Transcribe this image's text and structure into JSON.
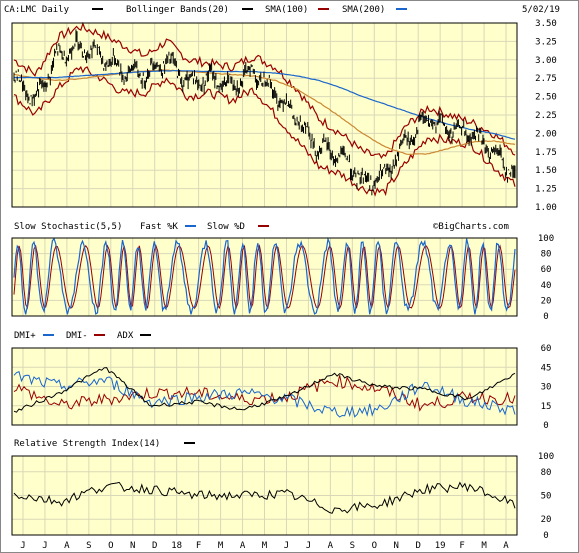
{
  "header": {
    "symbol": "CA:LMC Daily",
    "date": "5/02/19",
    "legend": [
      {
        "label": "Bollinger Bands(20)",
        "color": "#000000"
      },
      {
        "label": "SMA(100)",
        "color": "#990000"
      },
      {
        "label": "SMA(200)",
        "color": "#1a66cc"
      }
    ]
  },
  "watermark": "©BigCharts.com",
  "colors": {
    "background": "#ffffcc",
    "grid": "#d8d8b8",
    "price": "#000000",
    "bollinger": "#990000",
    "sma100": "#cc8833",
    "sma200": "#1a66cc",
    "fast_k": "#1a66cc",
    "slow_d": "#990000",
    "dmi_plus": "#1a66cc",
    "dmi_minus": "#990000",
    "adx": "#000000",
    "rsi": "#000000"
  },
  "x_labels": [
    "J",
    "J",
    "A",
    "S",
    "O",
    "N",
    "D",
    "18",
    "F",
    "M",
    "A",
    "M",
    "J",
    "J",
    "A",
    "S",
    "O",
    "N",
    "D",
    "19",
    "F",
    "M",
    "A"
  ],
  "chart_data": [
    {
      "type": "line",
      "title": "CA:LMC Daily",
      "panel": "price",
      "ylim": [
        1.0,
        3.5
      ],
      "y_ticks": [
        "3.50",
        "3.25",
        "3.00",
        "2.75",
        "2.50",
        "2.25",
        "2.00",
        "1.75",
        "1.50",
        "1.25",
        "1.00"
      ],
      "x": [
        "Jun 17",
        "Jul 17",
        "Aug 17",
        "Sep 17",
        "Oct 17",
        "Nov 17",
        "Dec 17",
        "Jan 18",
        "Feb 18",
        "Mar 18",
        "Apr 18",
        "May 18",
        "Jun 18",
        "Jul 18",
        "Aug 18",
        "Sep 18",
        "Oct 18",
        "Nov 18",
        "Dec 18",
        "Jan 19",
        "Feb 19",
        "Mar 19",
        "Apr 19",
        "May 19"
      ],
      "series": [
        {
          "name": "CA:LMC Daily",
          "values": [
            2.75,
            2.45,
            3.05,
            3.2,
            3.05,
            2.85,
            2.8,
            3.0,
            2.7,
            2.75,
            2.65,
            2.85,
            2.55,
            2.2,
            1.8,
            1.7,
            1.35,
            1.4,
            1.9,
            2.2,
            2.05,
            2.0,
            1.75,
            1.45
          ]
        },
        {
          "name": "Bollinger Bands(20) Upper",
          "values": [
            3.0,
            2.8,
            3.3,
            3.45,
            3.35,
            3.2,
            3.05,
            3.25,
            3.0,
            2.95,
            2.9,
            3.05,
            2.9,
            2.6,
            2.2,
            2.0,
            1.75,
            1.65,
            2.1,
            2.35,
            2.25,
            2.15,
            2.0,
            1.75
          ]
        },
        {
          "name": "Bollinger Bands(20) Lower",
          "values": [
            2.5,
            2.25,
            2.6,
            2.9,
            2.75,
            2.55,
            2.55,
            2.75,
            2.5,
            2.55,
            2.45,
            2.6,
            2.25,
            1.9,
            1.55,
            1.45,
            1.25,
            1.2,
            1.6,
            1.95,
            1.9,
            1.85,
            1.55,
            1.3
          ]
        },
        {
          "name": "SMA(100)",
          "values": [
            2.8,
            2.75,
            2.72,
            2.74,
            2.78,
            2.82,
            2.85,
            2.86,
            2.84,
            2.82,
            2.8,
            2.78,
            2.72,
            2.6,
            2.42,
            2.22,
            2.0,
            1.82,
            1.72,
            1.72,
            1.8,
            1.88,
            1.9,
            1.85
          ]
        },
        {
          "name": "SMA(200)",
          "values": [
            2.76,
            2.76,
            2.76,
            2.78,
            2.8,
            2.82,
            2.84,
            2.85,
            2.85,
            2.84,
            2.84,
            2.84,
            2.82,
            2.78,
            2.72,
            2.62,
            2.5,
            2.4,
            2.3,
            2.2,
            2.12,
            2.05,
            2.0,
            1.92
          ]
        }
      ]
    },
    {
      "type": "line",
      "title": "Slow Stochastic(5,5)",
      "panel": "stochastic",
      "ylim": [
        0,
        100
      ],
      "y_ticks": [
        "100",
        "80",
        "60",
        "40",
        "20",
        "0"
      ],
      "legend": [
        {
          "label": "Fast %K",
          "color": "#1a66cc"
        },
        {
          "label": "Slow %D",
          "color": "#990000"
        }
      ]
    },
    {
      "type": "line",
      "title": "DMI",
      "panel": "dmi",
      "ylim": [
        0,
        60
      ],
      "y_ticks": [
        "60",
        "45",
        "30",
        "15",
        "0"
      ],
      "legend": [
        {
          "label": "DMI+",
          "color": "#1a66cc"
        },
        {
          "label": "DMI-",
          "color": "#990000"
        },
        {
          "label": "ADX",
          "color": "#000000"
        }
      ],
      "x": [
        "Jun 17",
        "Aug 17",
        "Oct 17",
        "Dec 17",
        "Feb 18",
        "Apr 18",
        "Jun 18",
        "Aug 18",
        "Oct 18",
        "Dec 18",
        "Feb 19",
        "Apr 19"
      ],
      "series": [
        {
          "name": "DMI+",
          "values": [
            38,
            30,
            35,
            18,
            22,
            25,
            20,
            10,
            12,
            32,
            18,
            12
          ]
        },
        {
          "name": "DMI-",
          "values": [
            30,
            15,
            20,
            25,
            25,
            20,
            22,
            35,
            28,
            15,
            22,
            20
          ]
        },
        {
          "name": "ADX",
          "values": [
            10,
            25,
            45,
            15,
            18,
            12,
            22,
            40,
            30,
            28,
            20,
            40
          ]
        }
      ]
    },
    {
      "type": "line",
      "title": "Relative Strength Index(14)",
      "panel": "rsi",
      "ylim": [
        0,
        100
      ],
      "y_ticks": [
        "100",
        "80",
        "50",
        "20",
        "0"
      ],
      "legend": [
        {
          "label": "Relative Strength Index(14)",
          "color": "#000000"
        }
      ],
      "x": [
        "Jun 17",
        "Aug 17",
        "Oct 17",
        "Dec 17",
        "Feb 18",
        "Apr 18",
        "Jun 18",
        "Aug 18",
        "Oct 18",
        "Dec 18",
        "Feb 19",
        "Apr 19"
      ],
      "series": [
        {
          "name": "Relative Strength Index(14)",
          "values": [
            52,
            42,
            62,
            58,
            50,
            50,
            52,
            32,
            38,
            58,
            62,
            38
          ]
        }
      ]
    }
  ]
}
